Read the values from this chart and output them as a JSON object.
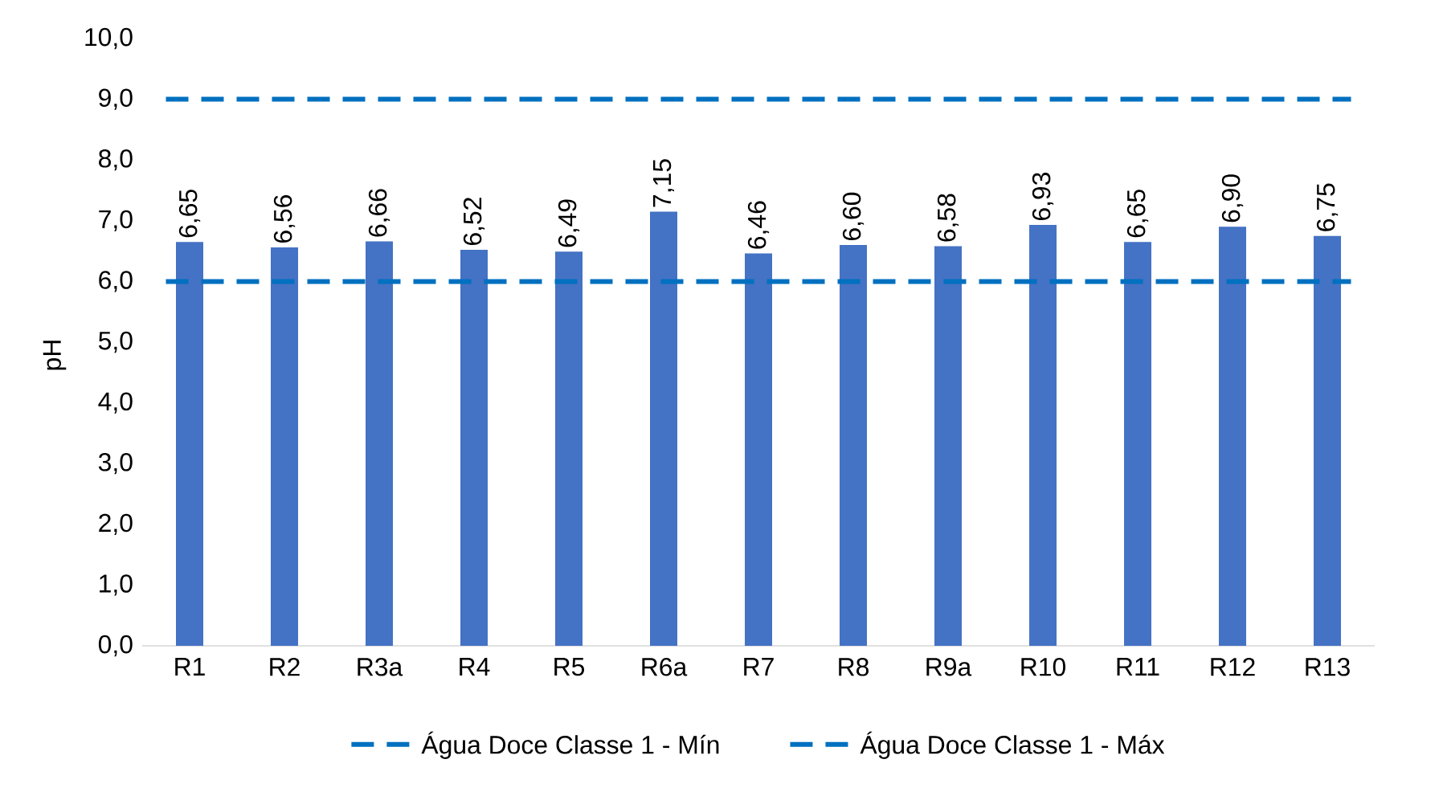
{
  "chart_data": {
    "type": "bar",
    "ylabel": "pH",
    "categories": [
      "R1",
      "R2",
      "R3a",
      "R4",
      "R5",
      "R6a",
      "R7",
      "R8",
      "R9a",
      "R10",
      "R11",
      "R12",
      "R13"
    ],
    "values": [
      6.65,
      6.56,
      6.66,
      6.52,
      6.49,
      7.15,
      6.46,
      6.6,
      6.58,
      6.93,
      6.65,
      6.9,
      6.75
    ],
    "value_labels": [
      "6,65",
      "6,56",
      "6,66",
      "6,52",
      "6,49",
      "7,15",
      "6,46",
      "6,60",
      "6,58",
      "6,93",
      "6,65",
      "6,90",
      "6,75"
    ],
    "color": "#4472c4",
    "ylim": [
      0,
      10
    ],
    "yticks": [
      {
        "value": 0,
        "label": "0,0"
      },
      {
        "value": 1,
        "label": "1,0"
      },
      {
        "value": 2,
        "label": "2,0"
      },
      {
        "value": 3,
        "label": "3,0"
      },
      {
        "value": 4,
        "label": "4,0"
      },
      {
        "value": 5,
        "label": "5,0"
      },
      {
        "value": 6,
        "label": "6,0"
      },
      {
        "value": 7,
        "label": "7,0"
      },
      {
        "value": 8,
        "label": "8,0"
      },
      {
        "value": 9,
        "label": "9,0"
      },
      {
        "value": 10,
        "label": "10,0"
      }
    ],
    "ref_lines": [
      {
        "axis": "y",
        "value": 6,
        "label": "Água Doce Classe 1 - Mín",
        "color": "#0070c0",
        "line_style": "dashed"
      },
      {
        "axis": "y",
        "value": 9,
        "label": "Água Doce Classe 1 - Máx",
        "color": "#0070c0",
        "line_style": "dashed"
      }
    ],
    "legend": "bottom",
    "grid": false
  }
}
